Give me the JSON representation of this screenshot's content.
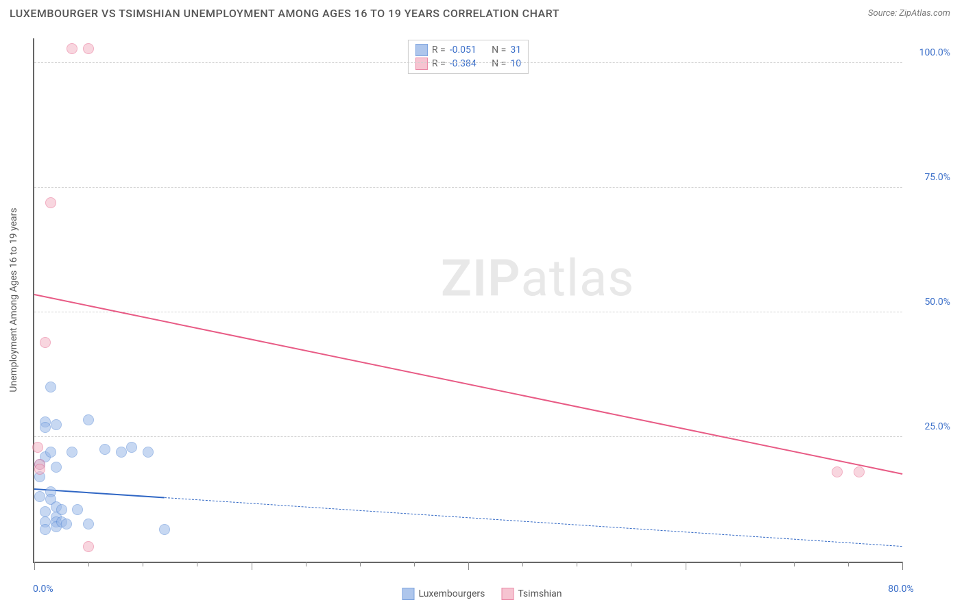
{
  "header": {
    "title": "LUXEMBOURGER VS TSIMSHIAN UNEMPLOYMENT AMONG AGES 16 TO 19 YEARS CORRELATION CHART",
    "source": "Source: ZipAtlas.com"
  },
  "watermark": {
    "zip": "ZIP",
    "atlas": "atlas"
  },
  "chart": {
    "type": "scatter",
    "xlim": [
      0,
      80
    ],
    "ylim": [
      0,
      105
    ],
    "ylabel": "Unemployment Among Ages 16 to 19 years",
    "background_color": "#ffffff",
    "grid_color": "#d0d0d0",
    "axis_color": "#666666",
    "tick_label_color": "#3b6fc9",
    "label_fontsize": 14,
    "yticks": [
      {
        "v": 25,
        "label": "25.0%"
      },
      {
        "v": 50,
        "label": "50.0%"
      },
      {
        "v": 75,
        "label": "75.0%"
      },
      {
        "v": 100,
        "label": "100.0%"
      }
    ],
    "xticks_major": [
      0,
      20,
      40,
      60,
      80
    ],
    "xtick_labels": [
      {
        "v": 0,
        "label": "0.0%"
      },
      {
        "v": 80,
        "label": "80.0%"
      }
    ],
    "marker_radius": 8,
    "series": [
      {
        "name": "Luxembourgers",
        "fill": "#9bb9e8",
        "stroke": "#5b8cd6",
        "fill_opacity": 0.55,
        "r": -0.051,
        "n": 31,
        "trend": {
          "x1": 0,
          "y1": 14.5,
          "x2": 80,
          "y2": 3.0,
          "solid_until_x": 12,
          "color": "#2f66c4",
          "width": 2.5
        },
        "points": [
          [
            0.5,
            19.5
          ],
          [
            0.5,
            17
          ],
          [
            0.5,
            13
          ],
          [
            1,
            28
          ],
          [
            1,
            27
          ],
          [
            1,
            21
          ],
          [
            1,
            10
          ],
          [
            1,
            8
          ],
          [
            1,
            6.5
          ],
          [
            1.5,
            35
          ],
          [
            1.5,
            22
          ],
          [
            1.5,
            14
          ],
          [
            1.5,
            12.5
          ],
          [
            2,
            27.5
          ],
          [
            2,
            19
          ],
          [
            2,
            11
          ],
          [
            2,
            9
          ],
          [
            2,
            8
          ],
          [
            2,
            7
          ],
          [
            2.5,
            10.5
          ],
          [
            2.5,
            8
          ],
          [
            3,
            7.5
          ],
          [
            3.5,
            22
          ],
          [
            4,
            10.5
          ],
          [
            5,
            28.5
          ],
          [
            5,
            7.5
          ],
          [
            6.5,
            22.5
          ],
          [
            8,
            22
          ],
          [
            9,
            23
          ],
          [
            10.5,
            22
          ],
          [
            12,
            6.5
          ]
        ]
      },
      {
        "name": "Tsimshian",
        "fill": "#f4b6c6",
        "stroke": "#e66a8f",
        "fill_opacity": 0.55,
        "r": -0.384,
        "n": 10,
        "trend": {
          "x1": 0,
          "y1": 53.5,
          "x2": 80,
          "y2": 17.5,
          "solid_until_x": 80,
          "color": "#e85b85",
          "width": 2.5
        },
        "points": [
          [
            0.3,
            23
          ],
          [
            0.5,
            19.5
          ],
          [
            0.5,
            18.5
          ],
          [
            1,
            44
          ],
          [
            1.5,
            72
          ],
          [
            3.5,
            103
          ],
          [
            5,
            103
          ],
          [
            5,
            3
          ],
          [
            74,
            18
          ],
          [
            76,
            18
          ]
        ]
      }
    ]
  },
  "legend_top": {
    "r_label": "R  =",
    "n_label": "N  ="
  },
  "legend_bottom": {
    "items": [
      "Luxembourgers",
      "Tsimshian"
    ]
  }
}
